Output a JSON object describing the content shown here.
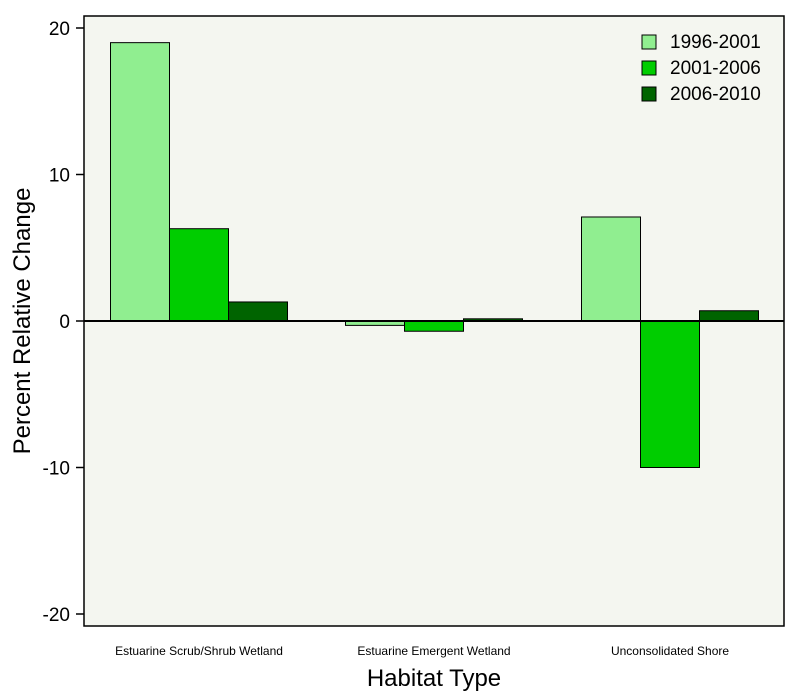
{
  "chart_data": {
    "type": "bar",
    "title": "",
    "xlabel": "Habitat Type",
    "ylabel": "Percent Relative Change",
    "ylim": [
      -21,
      21
    ],
    "yticks": [
      -20,
      -10,
      0,
      10,
      20
    ],
    "ytick_labels": [
      "-20",
      "-10",
      "0",
      "10",
      "20"
    ],
    "categories": [
      "Estuarine Scrub/Shrub Wetland",
      "Estuarine Emergent Wetland",
      "Unconsolidated Shore"
    ],
    "series": [
      {
        "name": "1996-2001",
        "color": "#90ee90",
        "values": [
          19.0,
          -0.3,
          7.1
        ]
      },
      {
        "name": "2001-2006",
        "color": "#00cd00",
        "values": [
          6.3,
          -0.7,
          -10.0
        ]
      },
      {
        "name": "2006-2010",
        "color": "#006400",
        "values": [
          1.3,
          0.15,
          0.7
        ]
      }
    ],
    "legend_position": "top-right",
    "background": "#f4f6f0",
    "grid": false
  }
}
